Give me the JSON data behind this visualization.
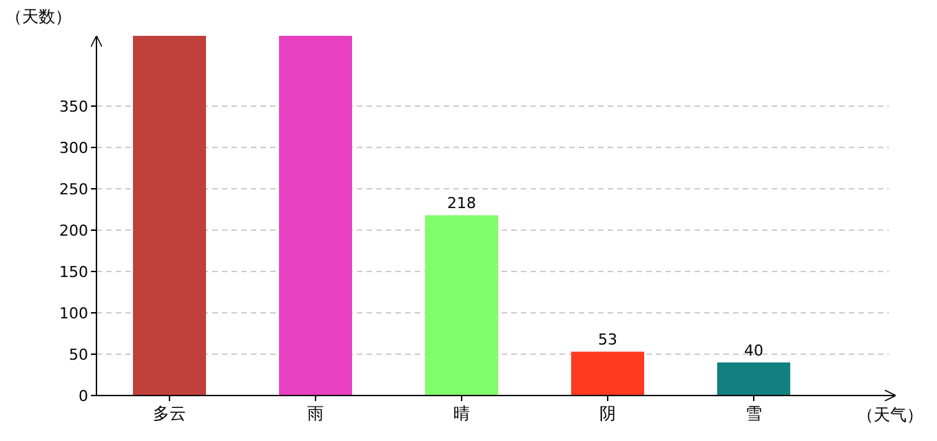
{
  "chart_data": {
    "type": "bar",
    "xlabel": "（天气）",
    "ylabel": "（天数）",
    "categories": [
      "多云",
      "雨",
      "晴",
      "阴",
      "雪"
    ],
    "values": [
      435,
      435,
      218,
      53,
      40
    ],
    "colors": [
      "#c0403c",
      "#e840c0",
      "#80ff6a",
      "#ff3a20",
      "#128080"
    ],
    "value_labels": [
      null,
      null,
      "218",
      "53",
      "40"
    ],
    "ylim": [
      0,
      435
    ],
    "yticks": [
      0,
      50,
      100,
      150,
      200,
      250,
      300,
      350
    ],
    "grid": "y"
  }
}
